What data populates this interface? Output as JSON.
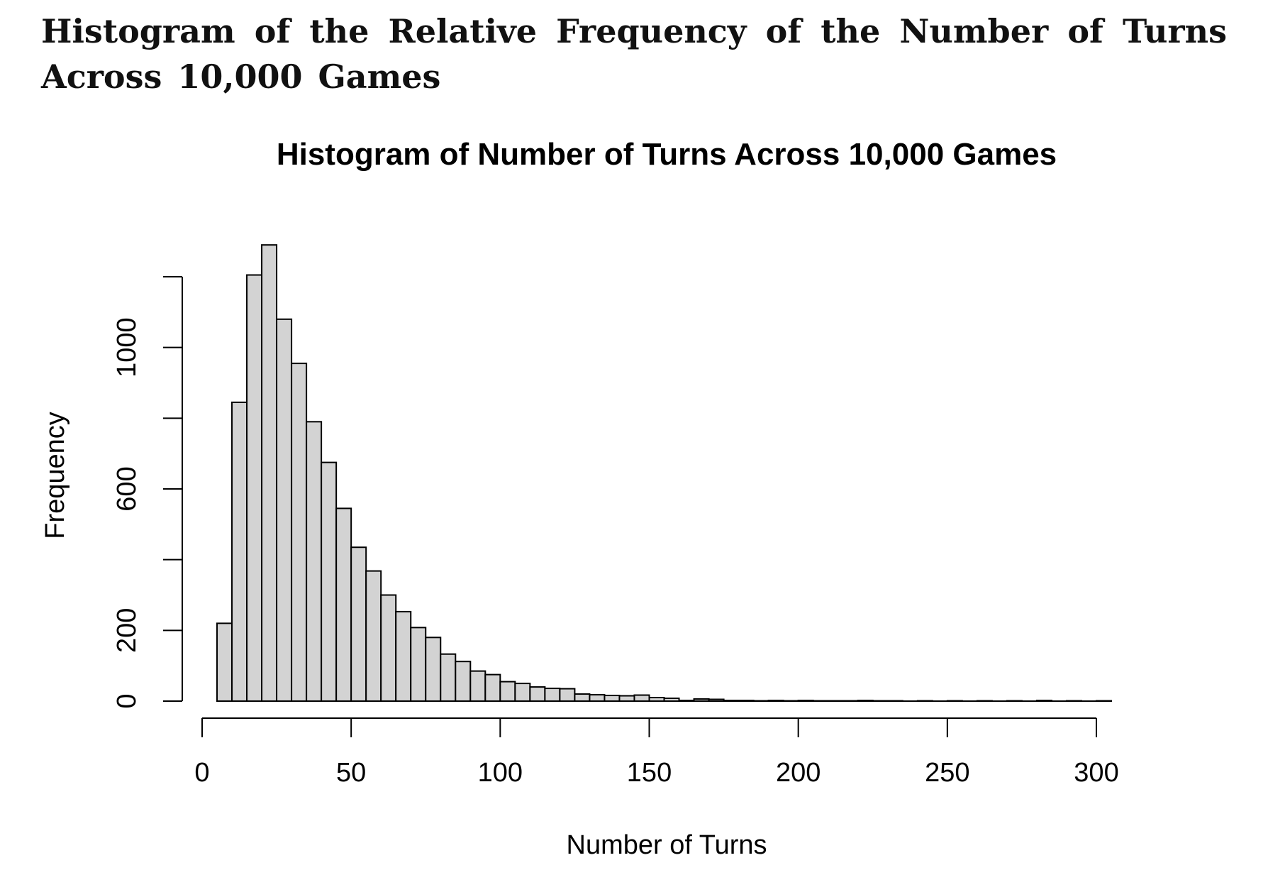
{
  "document": {
    "title": "Histogram of the Relative Frequency of the Number of Turns Across 10,000 Games"
  },
  "chart_data": {
    "type": "bar",
    "title": "Histogram of Number of Turns Across 10,000 Games",
    "xlabel": "Number of Turns",
    "ylabel": "Frequency",
    "bin_width": 5,
    "bin_starts": [
      5,
      10,
      15,
      20,
      25,
      30,
      35,
      40,
      45,
      50,
      55,
      60,
      65,
      70,
      75,
      80,
      85,
      90,
      95,
      100,
      105,
      110,
      115,
      120,
      125,
      130,
      135,
      140,
      145,
      150,
      155,
      160,
      165,
      170,
      175,
      180,
      185,
      190,
      195,
      200,
      205,
      210,
      215,
      220,
      225,
      230,
      235,
      240,
      245,
      250,
      255,
      260,
      265,
      270,
      275,
      280,
      285,
      290,
      295,
      300
    ],
    "values": [
      220,
      845,
      1205,
      1290,
      1080,
      955,
      790,
      675,
      545,
      435,
      368,
      300,
      253,
      208,
      180,
      133,
      112,
      85,
      75,
      55,
      50,
      40,
      36,
      35,
      20,
      18,
      16,
      15,
      17,
      10,
      8,
      2,
      6,
      5,
      2,
      2,
      1,
      2,
      1,
      2,
      1,
      1,
      1,
      2,
      1,
      1,
      0,
      1,
      0,
      1,
      0,
      1,
      0,
      1,
      0,
      2,
      0,
      1,
      0,
      1
    ],
    "x_ticks": [
      0,
      50,
      100,
      150,
      200,
      250,
      300
    ],
    "x_tick_labels": [
      "0",
      "50",
      "100",
      "150",
      "200",
      "250",
      "300"
    ],
    "y_ticks": [
      0,
      200,
      400,
      600,
      800,
      1000,
      1200
    ],
    "y_tick_labels": [
      "0",
      "200",
      "",
      "600",
      "",
      "1000",
      ""
    ],
    "xlim": [
      0,
      300
    ],
    "ylim": [
      0,
      1200
    ],
    "grid": false,
    "bar_fill": "#d3d3d3",
    "bar_stroke": "#000000"
  }
}
